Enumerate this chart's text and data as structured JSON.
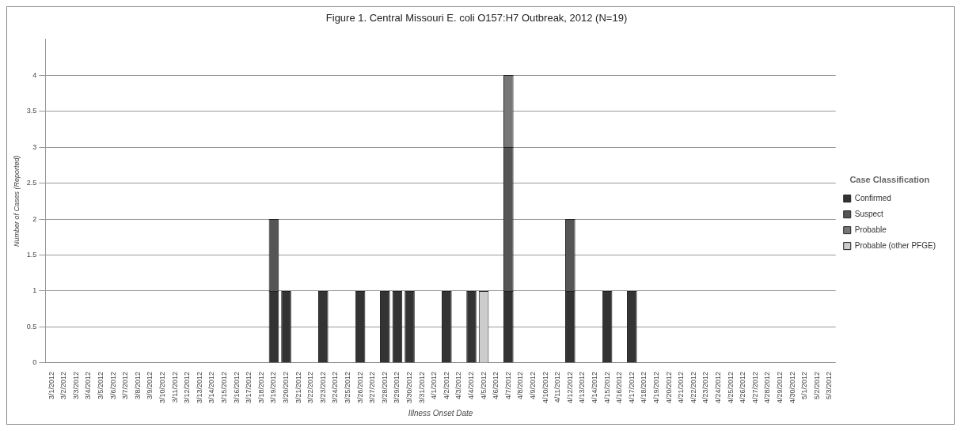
{
  "chart_data": {
    "type": "bar",
    "title": "Figure 1. Central Missouri E. coli O157:H7 Outbreak, 2012 (N=19)",
    "xlabel": "Illness Onset Date",
    "ylabel": "Number of Cases (Reported)",
    "legend_title": "Case Classification",
    "stacked": true,
    "legend": "right",
    "grid": "y",
    "ylim": [
      0,
      4.5
    ],
    "yticks": [
      0,
      0.5,
      1,
      1.5,
      2,
      2.5,
      3,
      3.5,
      4
    ],
    "categories": [
      "3/1/2012",
      "3/2/2012",
      "3/3/2012",
      "3/4/2012",
      "3/5/2012",
      "3/6/2012",
      "3/7/2012",
      "3/8/2012",
      "3/9/2012",
      "3/10/2012",
      "3/11/2012",
      "3/12/2012",
      "3/13/2012",
      "3/14/2012",
      "3/15/2012",
      "3/16/2012",
      "3/17/2012",
      "3/18/2012",
      "3/19/2012",
      "3/20/2012",
      "3/21/2012",
      "3/22/2012",
      "3/23/2012",
      "3/24/2012",
      "3/25/2012",
      "3/26/2012",
      "3/27/2012",
      "3/28/2012",
      "3/29/2012",
      "3/30/2012",
      "3/31/2012",
      "4/1/2012",
      "4/2/2012",
      "4/3/2012",
      "4/4/2012",
      "4/5/2012",
      "4/6/2012",
      "4/7/2012",
      "4/8/2012",
      "4/9/2012",
      "4/10/2012",
      "4/11/2012",
      "4/12/2012",
      "4/13/2012",
      "4/14/2012",
      "4/15/2012",
      "4/16/2012",
      "4/17/2012",
      "4/18/2012",
      "4/19/2012",
      "4/20/2012",
      "4/21/2012",
      "4/22/2012",
      "4/23/2012",
      "4/24/2012",
      "4/25/2012",
      "4/26/2012",
      "4/27/2012",
      "4/28/2012",
      "4/29/2012",
      "4/30/2012",
      "5/1/2012",
      "5/2/2012",
      "5/3/2012"
    ],
    "series": [
      {
        "name": "Confirmed",
        "color": "#333333",
        "values": [
          0,
          0,
          0,
          0,
          0,
          0,
          0,
          0,
          0,
          0,
          0,
          0,
          0,
          0,
          0,
          0,
          0,
          0,
          1,
          1,
          0,
          0,
          1,
          0,
          0,
          1,
          0,
          1,
          1,
          1,
          0,
          0,
          1,
          0,
          1,
          0,
          0,
          1,
          0,
          0,
          0,
          0,
          1,
          0,
          0,
          1,
          0,
          1,
          0,
          0,
          0,
          0,
          0,
          0,
          0,
          0,
          0,
          0,
          0,
          0,
          0,
          0,
          0,
          0
        ]
      },
      {
        "name": "Suspect",
        "color": "#555555",
        "values": [
          0,
          0,
          0,
          0,
          0,
          0,
          0,
          0,
          0,
          0,
          0,
          0,
          0,
          0,
          0,
          0,
          0,
          0,
          1,
          0,
          0,
          0,
          0,
          0,
          0,
          0,
          0,
          0,
          0,
          0,
          0,
          0,
          0,
          0,
          0,
          0,
          0,
          2,
          0,
          0,
          0,
          0,
          1,
          0,
          0,
          0,
          0,
          0,
          0,
          0,
          0,
          0,
          0,
          0,
          0,
          0,
          0,
          0,
          0,
          0,
          0,
          0,
          0,
          0
        ]
      },
      {
        "name": "Probable",
        "color": "#777777",
        "values": [
          0,
          0,
          0,
          0,
          0,
          0,
          0,
          0,
          0,
          0,
          0,
          0,
          0,
          0,
          0,
          0,
          0,
          0,
          0,
          0,
          0,
          0,
          0,
          0,
          0,
          0,
          0,
          0,
          0,
          0,
          0,
          0,
          0,
          0,
          0,
          0,
          0,
          1,
          0,
          0,
          0,
          0,
          0,
          0,
          0,
          0,
          0,
          0,
          0,
          0,
          0,
          0,
          0,
          0,
          0,
          0,
          0,
          0,
          0,
          0,
          0,
          0,
          0,
          0
        ]
      },
      {
        "name": "Probable (other PFGE)",
        "color": "#cccccc",
        "values": [
          0,
          0,
          0,
          0,
          0,
          0,
          0,
          0,
          0,
          0,
          0,
          0,
          0,
          0,
          0,
          0,
          0,
          0,
          0,
          0,
          0,
          0,
          0,
          0,
          0,
          0,
          0,
          0,
          0,
          0,
          0,
          0,
          0,
          0,
          0,
          1,
          0,
          0,
          0,
          0,
          0,
          0,
          0,
          0,
          0,
          0,
          0,
          0,
          0,
          0,
          0,
          0,
          0,
          0,
          0,
          0,
          0,
          0,
          0,
          0,
          0,
          0,
          0,
          0
        ]
      }
    ]
  }
}
